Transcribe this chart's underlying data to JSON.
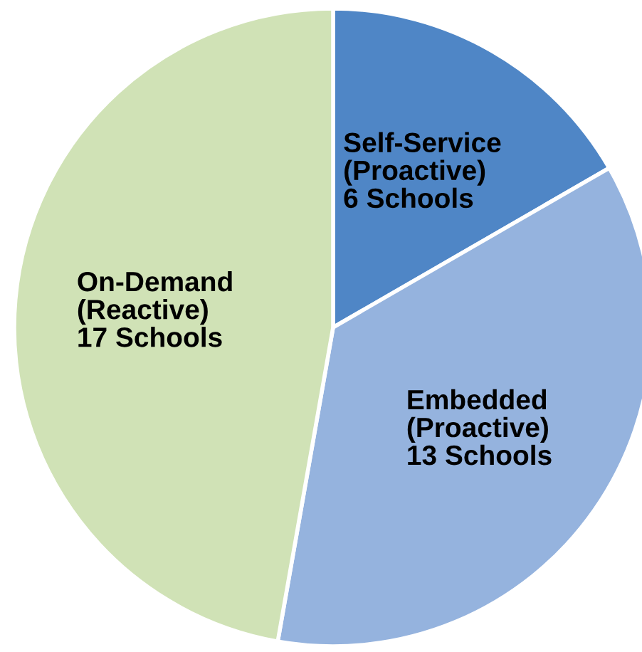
{
  "chart_data": {
    "type": "pie",
    "categories": [
      "Self-Service\n(Proactive)",
      "Embedded\n(Proactive)",
      "On-Demand\n(Reactive)"
    ],
    "values": [
      6,
      13,
      17
    ],
    "value_labels": [
      "6 Schools",
      "13 Schools",
      "17 Schools"
    ],
    "colors": [
      "#4f86c6",
      "#95b3de",
      "#d0e2b6"
    ],
    "legend": false
  }
}
